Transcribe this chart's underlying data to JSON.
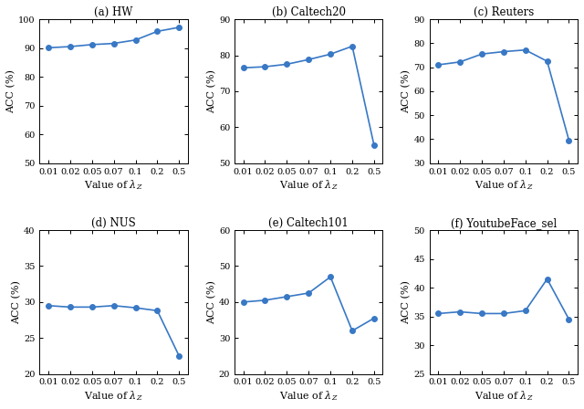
{
  "x_vals": [
    0.01,
    0.02,
    0.05,
    0.07,
    0.1,
    0.2,
    0.5
  ],
  "subplots": [
    {
      "title": "(a) HW",
      "ylabel": "ACC (%)",
      "xlabel": "Value of $\\lambda_Z$",
      "y": [
        90.1,
        90.5,
        91.2,
        91.6,
        92.8,
        95.8,
        97.2
      ],
      "ylim": [
        50,
        100
      ],
      "yticks": [
        50,
        60,
        70,
        80,
        90,
        100
      ]
    },
    {
      "title": "(b) Caltech20",
      "ylabel": "ACC (%)",
      "xlabel": "Value of $\\lambda_Z$",
      "y": [
        76.5,
        76.8,
        77.5,
        78.8,
        80.3,
        82.5,
        55.0
      ],
      "ylim": [
        50,
        90
      ],
      "yticks": [
        50,
        60,
        70,
        80,
        90
      ]
    },
    {
      "title": "(c) Reuters",
      "ylabel": "ACC (%)",
      "xlabel": "Value of $\\lambda_Z$",
      "y": [
        71.0,
        72.2,
        75.5,
        76.5,
        77.2,
        72.5,
        39.5
      ],
      "ylim": [
        30,
        90
      ],
      "yticks": [
        30,
        40,
        50,
        60,
        70,
        80,
        90
      ]
    },
    {
      "title": "(d) NUS",
      "ylabel": "ACC (%)",
      "xlabel": "Value of $\\lambda_Z$",
      "y": [
        29.5,
        29.3,
        29.3,
        29.5,
        29.2,
        28.8,
        22.5
      ],
      "ylim": [
        20,
        40
      ],
      "yticks": [
        20,
        25,
        30,
        35,
        40
      ]
    },
    {
      "title": "(e) Caltech101",
      "ylabel": "ACC (%)",
      "xlabel": "Value of $\\lambda_Z$",
      "y": [
        40.0,
        40.5,
        41.5,
        42.5,
        47.0,
        32.0,
        35.5
      ],
      "ylim": [
        20,
        60
      ],
      "yticks": [
        20,
        30,
        40,
        50,
        60
      ]
    },
    {
      "title": "(f) YoutubeFace_sel",
      "ylabel": "ACC (%)",
      "xlabel": "Value of $\\lambda_Z$",
      "y": [
        35.5,
        35.8,
        35.5,
        35.5,
        36.0,
        41.5,
        34.5
      ],
      "ylim": [
        25,
        50
      ],
      "yticks": [
        25,
        30,
        35,
        40,
        45,
        50
      ]
    }
  ],
  "line_color": "#3878c5",
  "marker": "o",
  "markersize": 4,
  "linewidth": 1.2,
  "x_tick_labels": [
    "0.01",
    "0.02",
    "0.05",
    "0.07",
    "0.1",
    "0.2",
    "0.5"
  ],
  "tick_fontsize": 7,
  "label_fontsize": 8,
  "title_fontsize": 8.5
}
